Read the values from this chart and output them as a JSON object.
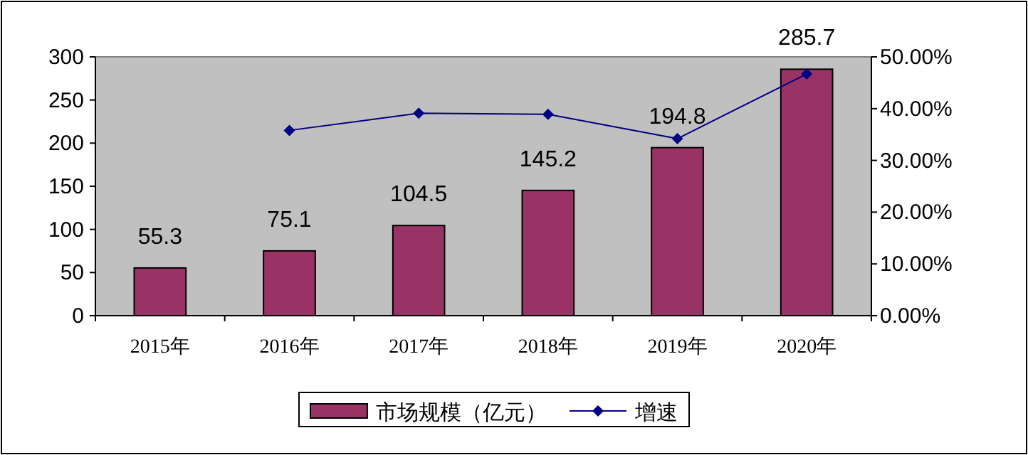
{
  "chart_data": {
    "type": "bar",
    "categories": [
      "2015年",
      "2016年",
      "2017年",
      "2018年",
      "2019年",
      "2020年"
    ],
    "series": [
      {
        "name": "市场规模（亿元）",
        "color": "#993366",
        "values": [
          55.3,
          75.1,
          104.5,
          145.2,
          194.8,
          285.7
        ],
        "value_labels": [
          "55.3",
          "75.1",
          "104.5",
          "145.2",
          "194.8",
          "285.7"
        ]
      },
      {
        "name": "增速",
        "type": "line",
        "axis": "y2",
        "color": "#000080",
        "marker": "diamond",
        "values": [
          null,
          35.8,
          39.1,
          38.9,
          34.2,
          46.7
        ]
      }
    ],
    "ylim": [
      0,
      300
    ],
    "yticks": [
      0,
      50,
      100,
      150,
      200,
      250,
      300
    ],
    "y2lim": [
      0,
      50
    ],
    "y2ticks": [
      {
        "value": 0,
        "label": "0.00%"
      },
      {
        "value": 10,
        "label": "10.00%"
      },
      {
        "value": 20,
        "label": "20.00%"
      },
      {
        "value": 30,
        "label": "30.00%"
      },
      {
        "value": 40,
        "label": "40.00%"
      },
      {
        "value": 50,
        "label": "50.00%"
      }
    ],
    "grid": false,
    "legend": "bottom"
  }
}
